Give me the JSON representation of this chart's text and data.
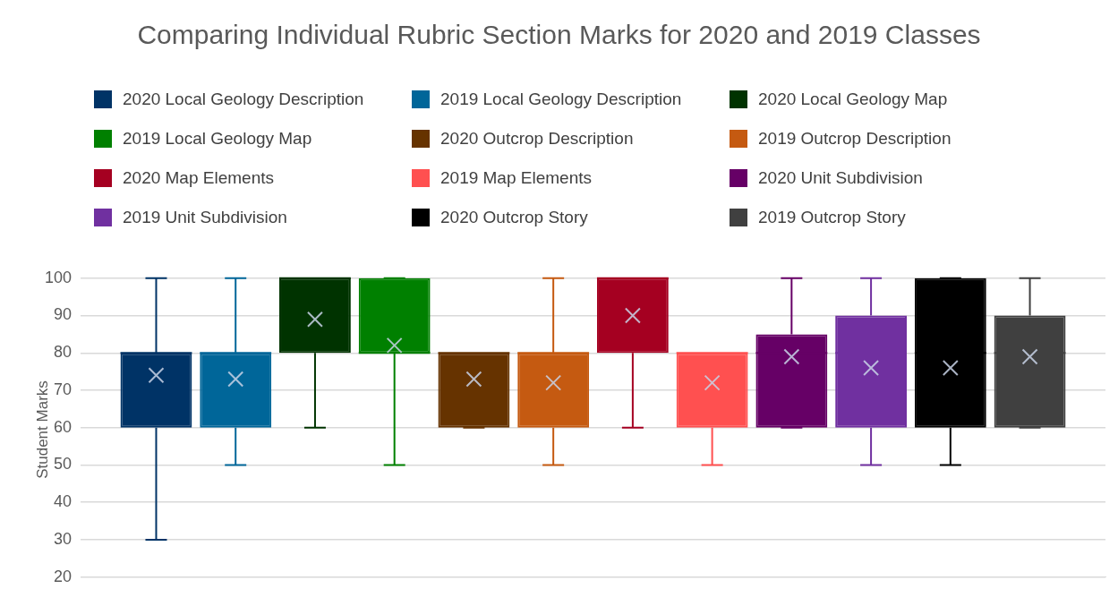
{
  "chart_data": {
    "type": "box",
    "title": "Comparing Individual Rubric Section Marks for 2020 and 2019 Classes",
    "ylabel": "Student Marks",
    "categories": [
      null
    ],
    "ylim": [
      20,
      100
    ],
    "yticks": [
      20,
      30,
      40,
      50,
      60,
      70,
      80,
      90,
      100
    ],
    "grid": "y",
    "legend": "top",
    "series": [
      {
        "name": "2020 Local Geology Description",
        "color": "#003366",
        "boxes": [
          {
            "low": 30,
            "q1": 60,
            "median": 80,
            "q3": 80,
            "high": 100,
            "mean": 74
          }
        ]
      },
      {
        "name": "2019 Local Geology Description",
        "color": "#006699",
        "boxes": [
          {
            "low": 50,
            "q1": 60,
            "median": 80,
            "q3": 80,
            "high": 100,
            "mean": 73
          }
        ]
      },
      {
        "name": "2020 Local Geology Map",
        "color": "#003300",
        "boxes": [
          {
            "low": 60,
            "q1": 80,
            "median": 100,
            "q3": 100,
            "high": 100,
            "mean": 89
          }
        ]
      },
      {
        "name": "2019 Local Geology Map",
        "color": "#008000",
        "boxes": [
          {
            "low": 50,
            "q1": 80,
            "median": 80,
            "q3": 100,
            "high": 100,
            "mean": 82
          }
        ]
      },
      {
        "name": "2020 Outcrop Description",
        "color": "#663300",
        "boxes": [
          {
            "low": 60,
            "q1": 60,
            "median": 80,
            "q3": 80,
            "high": 80,
            "mean": 73
          }
        ]
      },
      {
        "name": "2019 Outcrop Description",
        "color": "#c55a11",
        "boxes": [
          {
            "low": 50,
            "q1": 60,
            "median": 80,
            "q3": 80,
            "high": 100,
            "mean": 72
          }
        ]
      },
      {
        "name": "2020 Map Elements",
        "color": "#a50021",
        "boxes": [
          {
            "low": 60,
            "q1": 80,
            "median": 100,
            "q3": 100,
            "high": 100,
            "mean": 90
          }
        ]
      },
      {
        "name": "2019 Map Elements",
        "color": "#ff5050",
        "boxes": [
          {
            "low": 50,
            "q1": 60,
            "median": 80,
            "q3": 80,
            "high": 80,
            "mean": 72
          }
        ]
      },
      {
        "name": "2020 Unit Subdivision",
        "color": "#660066",
        "boxes": [
          {
            "low": 60,
            "q1": 60,
            "median": 80,
            "q3": 85,
            "high": 100,
            "mean": 79
          }
        ]
      },
      {
        "name": "2019 Unit Subdivision",
        "color": "#7030a0",
        "boxes": [
          {
            "low": 50,
            "q1": 60,
            "median": 80,
            "q3": 90,
            "high": 100,
            "mean": 76
          }
        ]
      },
      {
        "name": "2020 Outcrop Story",
        "color": "#000000",
        "boxes": [
          {
            "low": 50,
            "q1": 60,
            "median": 80,
            "q3": 100,
            "high": 100,
            "mean": 76
          }
        ]
      },
      {
        "name": "2019 Outcrop Story",
        "color": "#404040",
        "boxes": [
          {
            "low": 60,
            "q1": 60,
            "median": 80,
            "q3": 90,
            "high": 100,
            "mean": 79
          }
        ]
      }
    ]
  }
}
